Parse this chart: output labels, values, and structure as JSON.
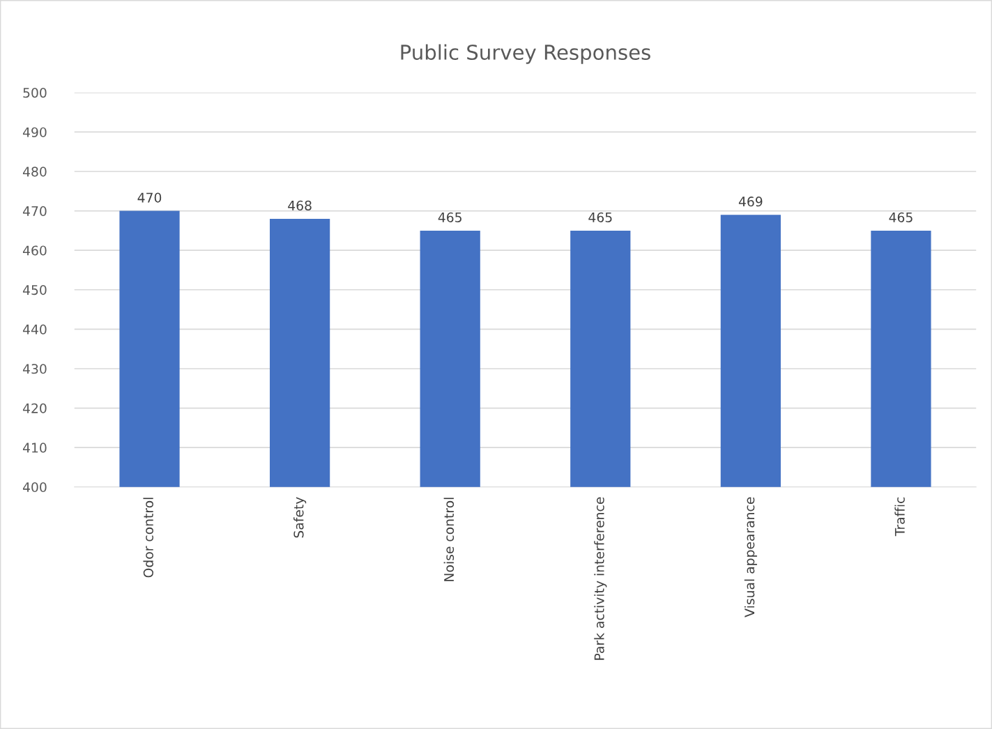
{
  "chart_data": {
    "type": "bar",
    "title": "Public Survey Responses",
    "categories": [
      "Odor control",
      "Safety",
      "Noise control",
      "Park activity interference",
      "Visual appearance",
      "Traffic"
    ],
    "values": [
      470,
      468,
      465,
      465,
      469,
      465
    ],
    "color": "#4472c4",
    "ylim": [
      400,
      500
    ],
    "yticks": [
      400,
      410,
      420,
      430,
      440,
      450,
      460,
      470,
      480,
      490,
      500
    ],
    "grid": "y",
    "data_labels": true,
    "legend": false
  }
}
